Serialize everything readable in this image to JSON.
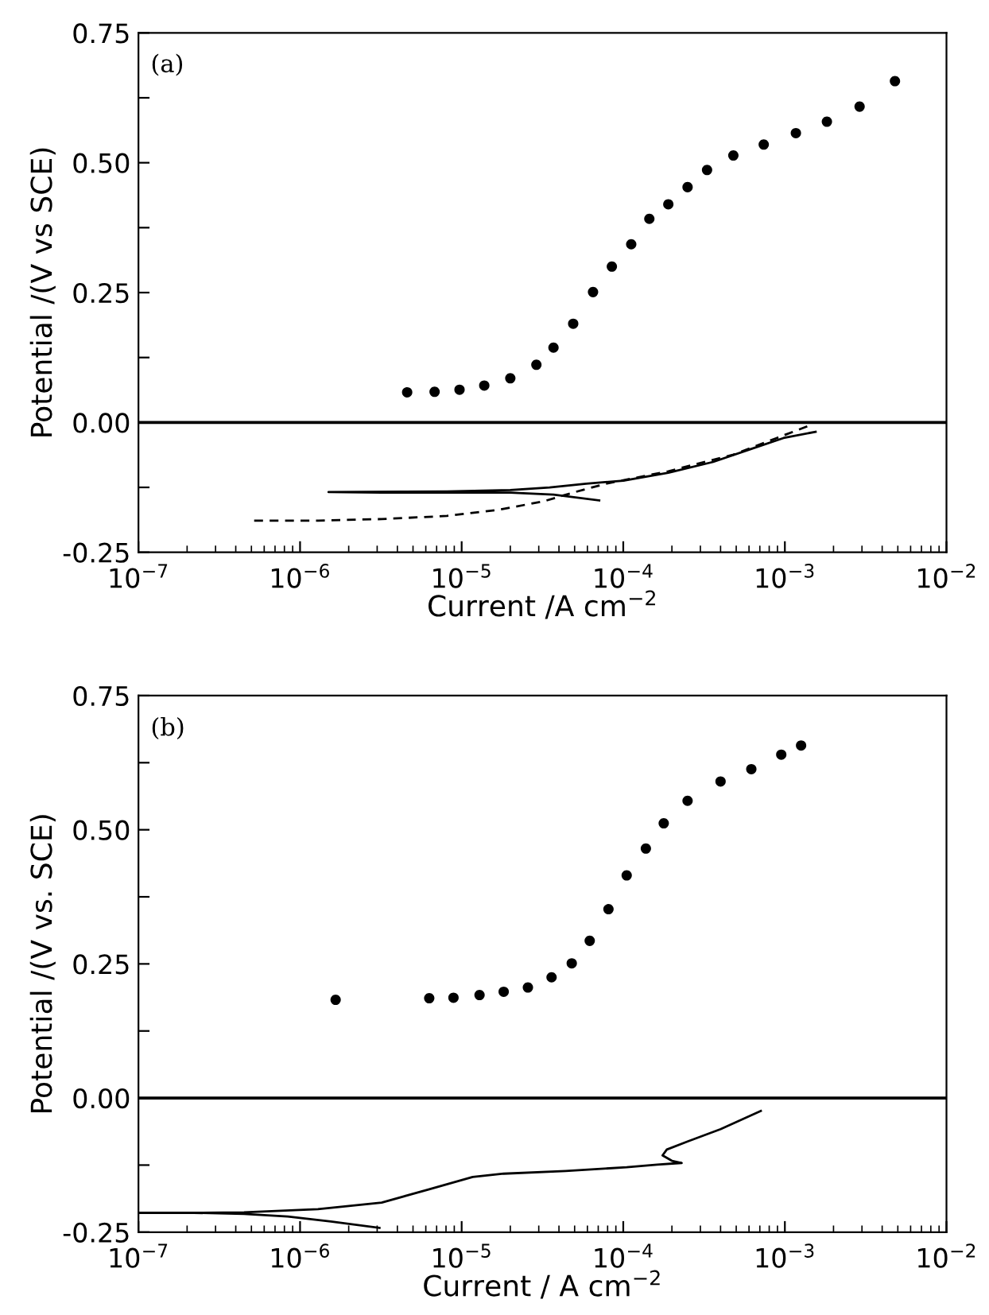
{
  "chart_data": [
    {
      "type": "line",
      "annotations": [
        "(a)"
      ],
      "xlabel": "Current /A cm$^{−2}$",
      "ylabel": "Potential /(V vs SCE)",
      "log": "x",
      "xlim": [
        1e-07,
        0.01
      ],
      "ylim": [
        -0.25,
        0.75
      ],
      "xticks": [
        {
          "value": 1e-07,
          "label": "10$^{−7}$"
        },
        {
          "value": 1e-06,
          "label": "10$^{−6}$"
        },
        {
          "value": 1e-05,
          "label": "10$^{−5}$"
        },
        {
          "value": 0.0001,
          "label": "10$^{−4}$"
        },
        {
          "value": 0.001,
          "label": "10$^{−3}$"
        },
        {
          "value": 0.01,
          "label": "10$^{−2}$"
        }
      ],
      "yticks": [
        {
          "value": -0.25,
          "label": "-0.25"
        },
        {
          "value": -0.125,
          "label": null
        },
        {
          "value": 0,
          "label": "0.00"
        },
        {
          "value": 0.125,
          "label": null
        },
        {
          "value": 0.25,
          "label": "0.25"
        },
        {
          "value": 0.375,
          "label": null
        },
        {
          "value": 0.5,
          "label": "0.50"
        },
        {
          "value": 0.625,
          "label": null
        },
        {
          "value": 0.75,
          "label": "0.75"
        }
      ],
      "ref_lines": [
        {
          "axis": "y",
          "value": 0,
          "color": "#000000"
        }
      ],
      "grid": false,
      "legend": false,
      "series": [
        {
          "type": "scatter",
          "marker": "circle",
          "color": "#000000",
          "x": [
            4.6e-06,
            6.8e-06,
            9.7e-06,
            1.38e-05,
            2e-05,
            2.9e-05,
            3.7e-05,
            4.9e-05,
            6.5e-05,
            8.5e-05,
            0.000112,
            0.000145,
            0.00019,
            0.00025,
            0.00033,
            0.00048,
            0.00074,
            0.00117,
            0.00182,
            0.0029,
            0.0048
          ],
          "values": [
            0.058,
            0.059,
            0.063,
            0.071,
            0.085,
            0.111,
            0.144,
            0.19,
            0.251,
            0.3,
            0.343,
            0.392,
            0.42,
            0.453,
            0.486,
            0.514,
            0.535,
            0.557,
            0.579,
            0.608,
            0.657
          ]
        },
        {
          "line_style": "solid",
          "color": "#000000",
          "x": [
            7.1e-05,
            3.7e-05,
            2e-05,
            8.1e-06,
            3.2e-06,
            1.5e-06,
            8.1e-06,
            2e-05,
            3.5e-05,
            5.9e-05,
            0.0001,
            0.00019,
            0.00036,
            0.00062,
            0.00098,
            0.00155
          ],
          "values": [
            -0.15,
            -0.139,
            -0.135,
            -0.135,
            -0.135,
            -0.134,
            -0.133,
            -0.13,
            -0.125,
            -0.118,
            -0.112,
            -0.097,
            -0.076,
            -0.051,
            -0.03,
            -0.018
          ]
        },
        {
          "line_style": "dashed",
          "color": "#000000",
          "x": [
            5.2e-07,
            1.3e-06,
            3.2e-06,
            8.1e-06,
            1.7e-05,
            3.2e-05,
            4.9e-05,
            7.8e-05,
            0.00019,
            0.00048,
            0.00089,
            0.0015
          ],
          "values": [
            -0.189,
            -0.189,
            -0.186,
            -0.18,
            -0.168,
            -0.152,
            -0.135,
            -0.118,
            -0.094,
            -0.062,
            -0.03,
            -0.003
          ]
        }
      ]
    },
    {
      "type": "line",
      "annotations": [
        "(b)"
      ],
      "xlabel": "Current / A cm$^{−2}$",
      "ylabel": "Potential /(V vs. SCE)",
      "log": "x",
      "xlim": [
        1e-07,
        0.01
      ],
      "ylim": [
        -0.25,
        0.75
      ],
      "xticks": [
        {
          "value": 1e-07,
          "label": "10$^{−7}$"
        },
        {
          "value": 1e-06,
          "label": "10$^{−6}$"
        },
        {
          "value": 1e-05,
          "label": "10$^{−5}$"
        },
        {
          "value": 0.0001,
          "label": "10$^{−4}$"
        },
        {
          "value": 0.001,
          "label": "10$^{−3}$"
        },
        {
          "value": 0.01,
          "label": "10$^{−2}$"
        }
      ],
      "yticks": [
        {
          "value": -0.25,
          "label": "-0.25"
        },
        {
          "value": -0.125,
          "label": null
        },
        {
          "value": 0,
          "label": "0.00"
        },
        {
          "value": 0.125,
          "label": null
        },
        {
          "value": 0.25,
          "label": "0.25"
        },
        {
          "value": 0.375,
          "label": null
        },
        {
          "value": 0.5,
          "label": "0.50"
        },
        {
          "value": 0.625,
          "label": null
        },
        {
          "value": 0.75,
          "label": "0.75"
        }
      ],
      "ref_lines": [
        {
          "axis": "y",
          "value": 0,
          "color": "#000000"
        }
      ],
      "grid": false,
      "legend": false,
      "series": [
        {
          "type": "scatter",
          "marker": "circle",
          "color": "#000000",
          "x": [
            1.66e-06,
            6.3e-06,
            8.9e-06,
            1.29e-05,
            1.82e-05,
            2.57e-05,
            3.6e-05,
            4.8e-05,
            6.2e-05,
            8.1e-05,
            0.000105,
            0.000138,
            0.000178,
            0.00025,
            0.0004,
            0.00062,
            0.00095,
            0.00126
          ],
          "values": [
            0.183,
            0.186,
            0.187,
            0.192,
            0.198,
            0.206,
            0.225,
            0.251,
            0.293,
            0.352,
            0.415,
            0.465,
            0.512,
            0.554,
            0.59,
            0.613,
            0.64,
            0.657
          ]
        },
        {
          "line_style": "solid",
          "color": "#000000",
          "x": [
            3.1e-06,
            1.55e-06,
            8.4e-07,
            4.5e-07,
            2.2e-07,
            1e-07,
            2.2e-07,
            4.5e-07,
            1.29e-06,
            3.2e-06,
            6.3e-06,
            1.17e-05,
            1.82e-05,
            4.4e-05,
            0.000105,
            0.000162,
            0.00023,
            0.0002,
            0.000175,
            0.000186,
            0.00025,
            0.0004,
            0.00071
          ],
          "values": [
            -0.242,
            -0.23,
            -0.221,
            -0.216,
            -0.214,
            -0.214,
            -0.214,
            -0.213,
            -0.207,
            -0.195,
            -0.17,
            -0.147,
            -0.141,
            -0.136,
            -0.129,
            -0.124,
            -0.121,
            -0.117,
            -0.107,
            -0.096,
            -0.081,
            -0.058,
            -0.024
          ]
        }
      ]
    }
  ]
}
